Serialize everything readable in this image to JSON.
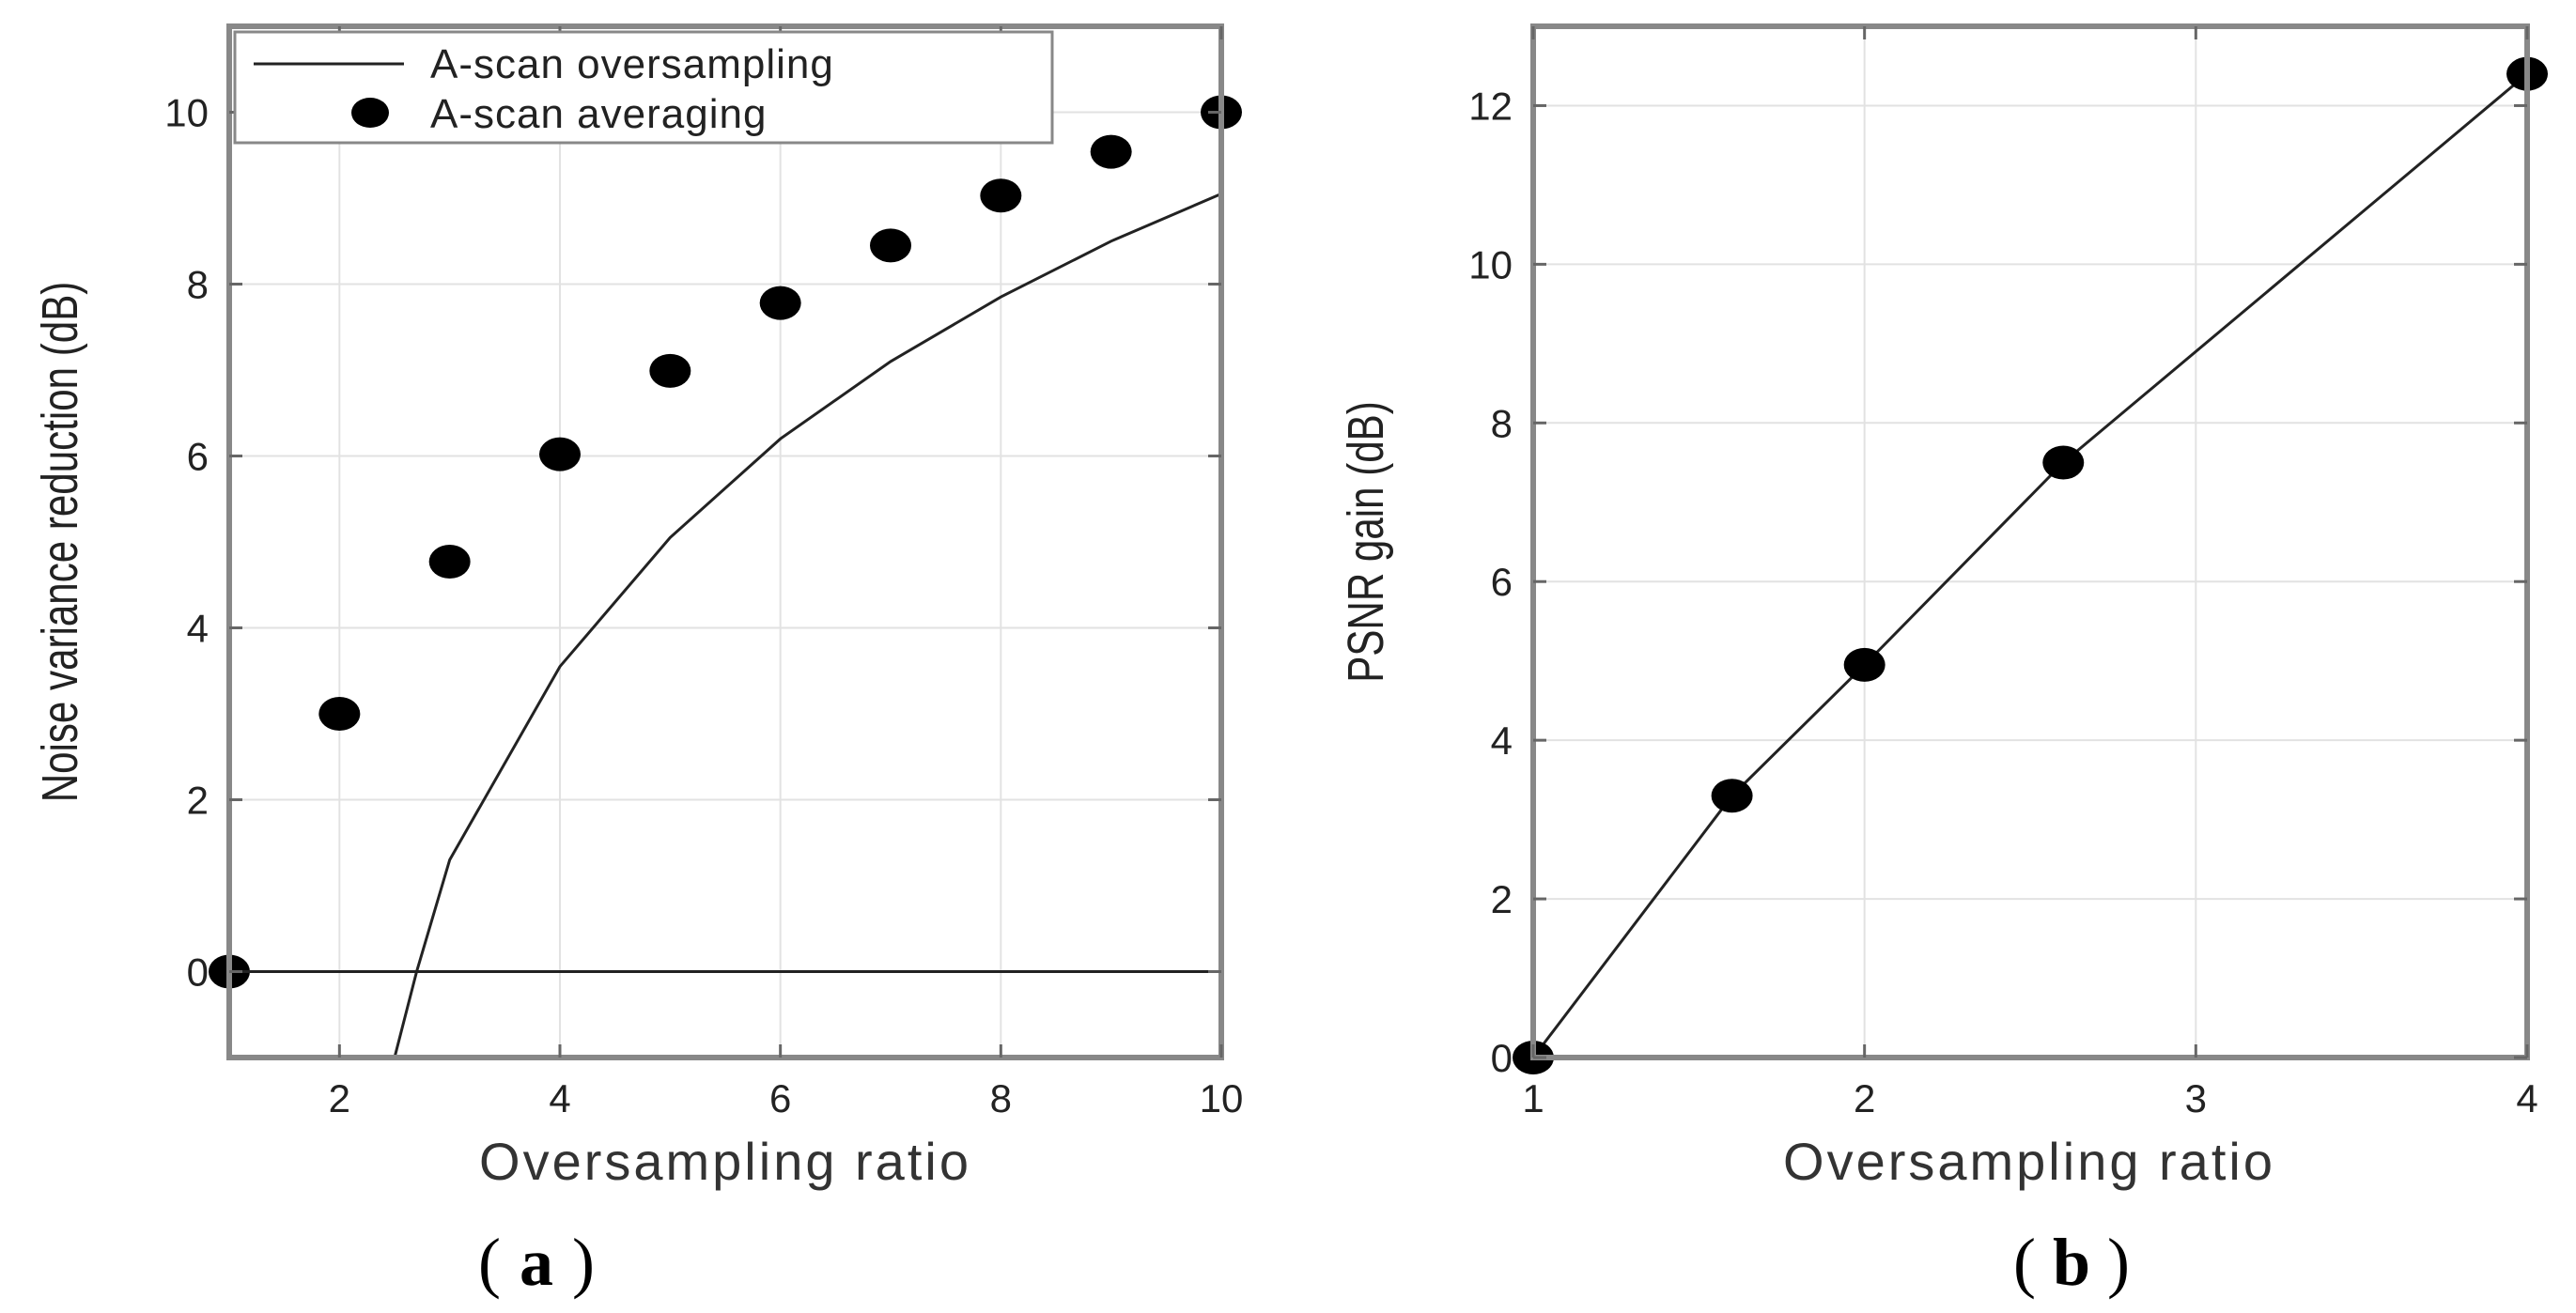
{
  "chart_data": [
    {
      "id": "a",
      "type": "line+scatter",
      "panel_label": "a",
      "xlabel": "Oversampling ratio",
      "ylabel": "Noise variance reduction (dB)",
      "xlim": [
        1,
        10
      ],
      "ylim": [
        -1,
        11
      ],
      "xticks": [
        2,
        4,
        6,
        8,
        10
      ],
      "yticks": [
        0,
        2,
        4,
        6,
        8,
        10
      ],
      "grid": true,
      "legend": "top-left",
      "series": [
        {
          "name": "A-scan oversampling",
          "style": "line",
          "x": [
            2.5,
            2.7,
            3,
            4,
            5,
            6,
            7,
            8,
            9,
            10
          ],
          "y": [
            -1,
            0,
            1.3,
            3.55,
            5.05,
            6.2,
            7.1,
            7.85,
            8.5,
            9.05
          ]
        },
        {
          "name": "A-scan averaging",
          "style": "markers",
          "x": [
            1,
            2,
            3,
            4,
            5,
            6,
            7,
            8,
            9,
            10
          ],
          "y": [
            0,
            3.0,
            4.77,
            6.02,
            6.99,
            7.78,
            8.45,
            9.03,
            9.54,
            10.0
          ]
        },
        {
          "name": "zero reference",
          "style": "reference",
          "x": [
            1,
            10
          ],
          "y": [
            0,
            0
          ]
        }
      ]
    },
    {
      "id": "b",
      "type": "line",
      "panel_label": "b",
      "xlabel": "Oversampling ratio",
      "ylabel": "PSNR gain (dB)",
      "xlim": [
        1,
        4
      ],
      "ylim": [
        0,
        13
      ],
      "xticks": [
        1,
        2,
        3,
        4
      ],
      "yticks": [
        0,
        2,
        4,
        6,
        8,
        10,
        12
      ],
      "grid": true,
      "series": [
        {
          "name": "PSNR gain",
          "style": "line+markers",
          "x": [
            1,
            1.6,
            2,
            2.6,
            4
          ],
          "y": [
            0,
            3.3,
            4.95,
            7.5,
            12.4
          ]
        }
      ]
    }
  ]
}
